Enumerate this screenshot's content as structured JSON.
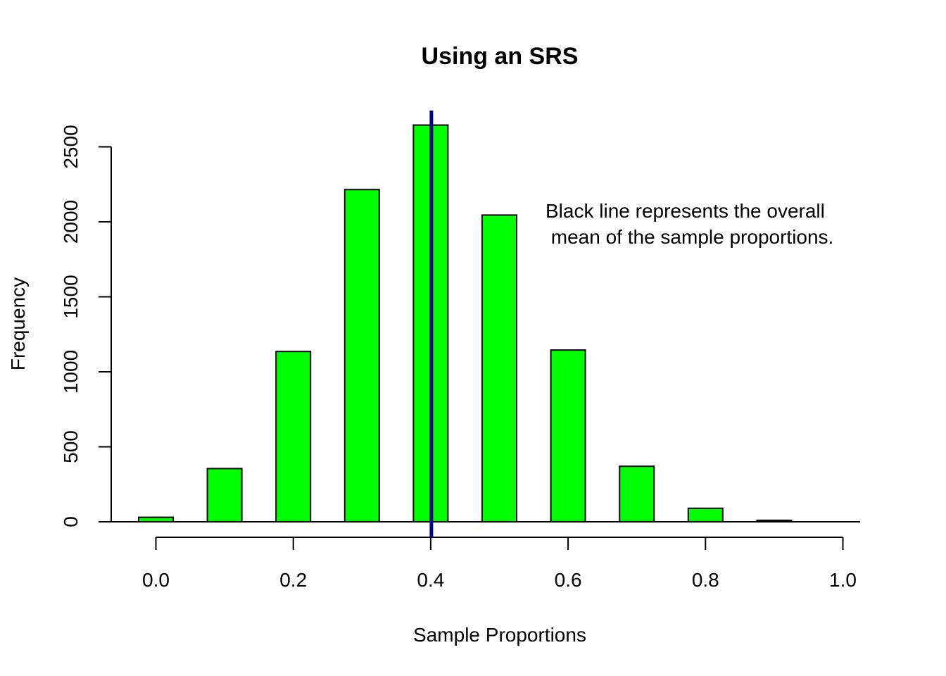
{
  "chart_data": {
    "type": "bar",
    "title": "Using an SRS",
    "xlabel": "Sample Proportions",
    "ylabel": "Frequency",
    "x": [
      0.0,
      0.1,
      0.2,
      0.3,
      0.4,
      0.5,
      0.6,
      0.7,
      0.8,
      0.9,
      1.0
    ],
    "values": [
      30,
      355,
      1135,
      2215,
      2645,
      2045,
      1145,
      370,
      90,
      10,
      0
    ],
    "xlim": [
      0.0,
      1.0
    ],
    "ylim": [
      0,
      2500
    ],
    "xticks": [
      "0.0",
      "0.2",
      "0.4",
      "0.6",
      "0.8",
      "1.0"
    ],
    "yticks": [
      "0",
      "500",
      "1000",
      "1500",
      "2000",
      "2500"
    ],
    "mean_line": {
      "x": 0.4,
      "color": "#00008b"
    },
    "bar_color": "#00ff00",
    "annotation": [
      "Black line represents the overall",
      " mean of the sample proportions."
    ],
    "grid": false
  }
}
